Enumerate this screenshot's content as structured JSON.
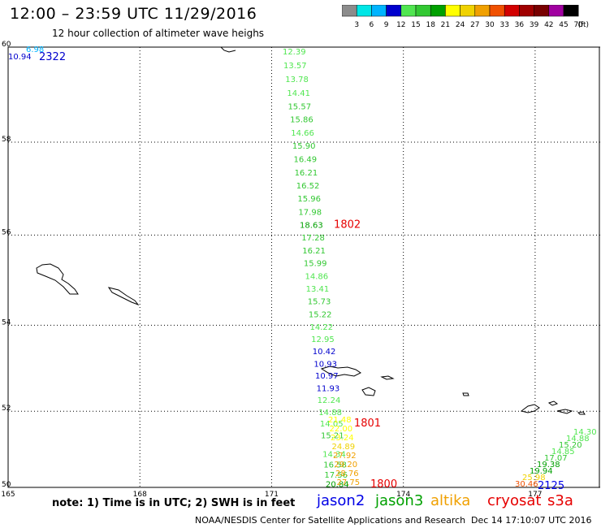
{
  "title": "12:00 – 23:59 UTC 11/29/2016",
  "subtitle": "12 hour collection of altimeter wave heighs",
  "colorbar": {
    "unit": "(ft)",
    "labels": [
      "3",
      "6",
      "9",
      "12",
      "15",
      "18",
      "21",
      "24",
      "27",
      "30",
      "33",
      "36",
      "39",
      "42",
      "45",
      "70"
    ],
    "colors": [
      "#8c8c8c",
      "#00e6e6",
      "#00b4ff",
      "#0000cd",
      "#50e650",
      "#32c832",
      "#00a000",
      "#ffff00",
      "#f0d200",
      "#f0a000",
      "#f05000",
      "#d20000",
      "#a00000",
      "#780000",
      "#a000a0",
      "#000000"
    ]
  },
  "map": {
    "lon_ticks": [
      "165",
      "168",
      "171",
      "174",
      "177"
    ],
    "lat_ticks": [
      "60",
      "58",
      "56",
      "54",
      "52",
      "50"
    ],
    "lon_range": [
      165,
      178.5
    ],
    "lat_range": [
      50,
      60
    ]
  },
  "tracks": [
    {
      "satellite": "cryosat",
      "time_label": "1802",
      "time_label_color": "#e60000",
      "points": [
        {
          "lon": 171.25,
          "lat": 59.85,
          "v": "12.39"
        },
        {
          "lon": 171.27,
          "lat": 59.56,
          "v": "13.57"
        },
        {
          "lon": 171.31,
          "lat": 59.27,
          "v": "13.78"
        },
        {
          "lon": 171.35,
          "lat": 58.98,
          "v": "14.41"
        },
        {
          "lon": 171.37,
          "lat": 58.7,
          "v": "15.57"
        },
        {
          "lon": 171.42,
          "lat": 58.42,
          "v": "15.86"
        },
        {
          "lon": 171.44,
          "lat": 58.14,
          "v": "14.66"
        },
        {
          "lon": 171.47,
          "lat": 57.86,
          "v": "15.90"
        },
        {
          "lon": 171.5,
          "lat": 57.58,
          "v": "16.49"
        },
        {
          "lon": 171.52,
          "lat": 57.29,
          "v": "16.21"
        },
        {
          "lon": 171.56,
          "lat": 57.01,
          "v": "16.52"
        },
        {
          "lon": 171.59,
          "lat": 56.73,
          "v": "15.96"
        },
        {
          "lon": 171.61,
          "lat": 56.44,
          "v": "17.98"
        },
        {
          "lon": 171.64,
          "lat": 56.16,
          "v": "18.63"
        },
        {
          "lon": 171.68,
          "lat": 55.88,
          "v": "17.28"
        },
        {
          "lon": 171.7,
          "lat": 55.6,
          "v": "16.21"
        },
        {
          "lon": 171.73,
          "lat": 55.32,
          "v": "15.99"
        },
        {
          "lon": 171.76,
          "lat": 55.03,
          "v": "14.86"
        },
        {
          "lon": 171.78,
          "lat": 54.75,
          "v": "13.41"
        },
        {
          "lon": 171.82,
          "lat": 54.47,
          "v": "15.73"
        },
        {
          "lon": 171.84,
          "lat": 54.18,
          "v": "15.22"
        },
        {
          "lon": 171.87,
          "lat": 53.9,
          "v": "14.22"
        },
        {
          "lon": 171.9,
          "lat": 53.62,
          "v": "12.95"
        }
      ]
    },
    {
      "satellite": "cryosat",
      "time_label": "1801",
      "time_label_color": "#e60000",
      "points": [
        {
          "lon": 171.93,
          "lat": 53.34,
          "v": "10.42"
        },
        {
          "lon": 171.96,
          "lat": 53.05,
          "v": "10.93"
        },
        {
          "lon": 171.99,
          "lat": 52.77,
          "v": "10.97"
        },
        {
          "lon": 172.02,
          "lat": 52.48,
          "v": "11.93"
        },
        {
          "lon": 172.04,
          "lat": 52.2,
          "v": "12.24"
        },
        {
          "lon": 172.07,
          "lat": 51.91,
          "v": "14.88"
        },
        {
          "lon": 172.1,
          "lat": 51.63,
          "v": "14.05"
        },
        {
          "lon": 172.12,
          "lat": 51.34,
          "v": "15.21"
        },
        {
          "lon": 172.16,
          "lat": 50.86,
          "v": "14.34"
        },
        {
          "lon": 172.18,
          "lat": 50.58,
          "v": "16.58"
        },
        {
          "lon": 172.2,
          "lat": 50.3,
          "v": "17.56"
        },
        {
          "lon": 172.23,
          "lat": 50.02,
          "v": "20.84"
        }
      ]
    }
  ],
  "note": "note: 1) Time is in UTC; 2) SWH is in feet",
  "legend": [
    {
      "name": "jason2",
      "color": "#0000e6"
    },
    {
      "name": "jason3",
      "color": "#00a000"
    },
    {
      "name": "altika",
      "color": "#f0a000"
    },
    {
      "name": "cryosat",
      "color": "#e60000"
    },
    {
      "name": "s3a",
      "color": "#e60000"
    }
  ],
  "footer": {
    "center": "NOAA/NESDIS Center for Satellite Applications and Research",
    "timestamp": "Dec 14 17:10:07 UTC 2016"
  },
  "corner_labels": [
    {
      "text": "6.98",
      "color": "#00b4ff"
    },
    {
      "text": "10.94",
      "color": "#0000cd"
    },
    {
      "text": "2322",
      "color": "#0000cd"
    }
  ],
  "extra_labels": {
    "bottom_track": [
      "21.48",
      "22.00",
      "23.24",
      "24.89",
      "27.92",
      "29.20",
      "28.76",
      "27.75"
    ],
    "bottom_time": "1800",
    "right_track": [
      "14.30",
      "14.88",
      "15.20",
      "14.85",
      "17.07",
      "19.38",
      "19.94",
      "25.98",
      "30.46"
    ],
    "right_time": "2125"
  }
}
